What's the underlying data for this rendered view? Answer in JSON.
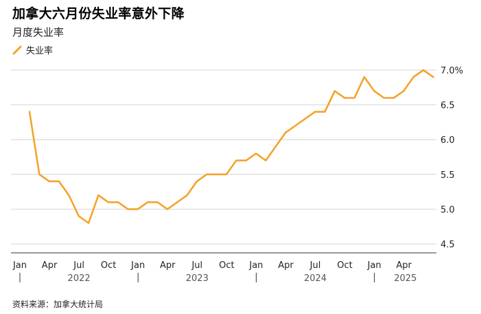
{
  "title": "加拿大六月份失业率意外下降",
  "subtitle": "月度失业率",
  "source": "资料来源：加拿大统计局",
  "chart_data": {
    "type": "line",
    "title": "加拿大六月份失业率意外下降",
    "subtitle": "月度失业率",
    "legend": [
      "失业率"
    ],
    "legend_position": "top-left",
    "grid": true,
    "color": "#f5a32a",
    "ylim": [
      4.5,
      7.0
    ],
    "y_ticks": [
      "4.5",
      "5.0",
      "5.5",
      "6.0",
      "6.5",
      "7.0%"
    ],
    "y_tick_values": [
      4.5,
      5.0,
      5.5,
      6.0,
      6.5,
      7.0
    ],
    "x_tick_labels": [
      "Jan",
      "Apr",
      "Jul",
      "Oct",
      "Jan",
      "Apr",
      "Jul",
      "Oct",
      "Jan",
      "Apr",
      "Jul",
      "Oct",
      "Jan",
      "Apr"
    ],
    "years": [
      "2022",
      "2023",
      "2024",
      "2025"
    ],
    "x_start": "2022-01",
    "series": [
      {
        "name": "失业率",
        "values": [
          6.4,
          5.5,
          5.4,
          5.4,
          5.2,
          4.9,
          4.8,
          5.2,
          5.1,
          5.1,
          5.0,
          5.0,
          5.1,
          5.1,
          5.0,
          5.1,
          5.2,
          5.4,
          5.5,
          5.5,
          5.5,
          5.7,
          5.7,
          5.8,
          5.7,
          5.9,
          6.1,
          6.2,
          6.3,
          6.4,
          6.4,
          6.7,
          6.6,
          6.6,
          6.9,
          6.7,
          6.6,
          6.6,
          6.7,
          6.9,
          7.0,
          6.9
        ]
      }
    ]
  }
}
